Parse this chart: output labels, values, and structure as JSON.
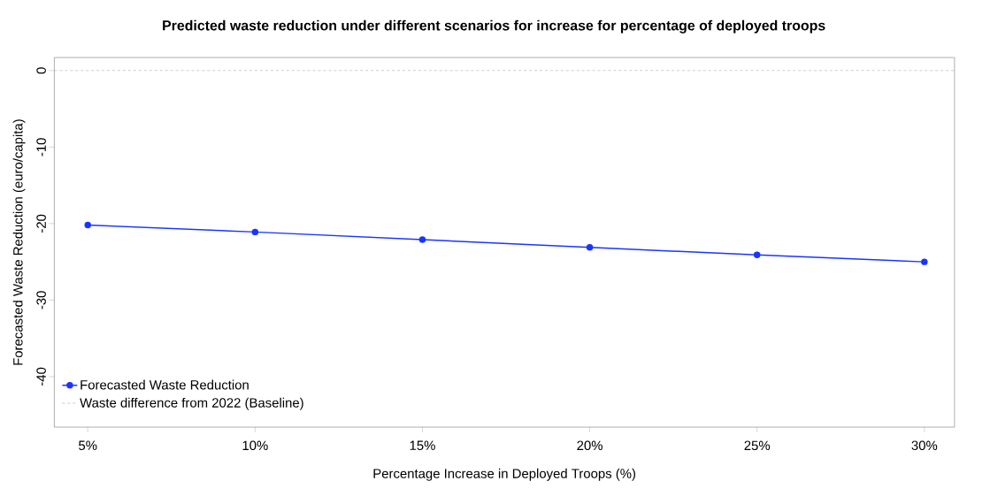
{
  "chart_data": {
    "type": "line",
    "title": "Predicted waste reduction under different scenarios for increase for percentage of deployed troops",
    "xlabel": "Percentage Increase in Deployed Troops (%)",
    "ylabel": "Forecasted Waste Reduction (euro/capita)",
    "x": [
      5,
      10,
      15,
      20,
      25,
      30
    ],
    "series": [
      {
        "name": "Forecasted Waste Reduction",
        "color": "#1a35ff",
        "values": [
          -20.2,
          -21.1,
          -22.1,
          -23.1,
          -24.1,
          -25.0
        ]
      }
    ],
    "marker": "circle",
    "line_style": "solid",
    "xlim": [
      4,
      30.9
    ],
    "ylim": [
      -46.6,
      1.7
    ],
    "xticks": [
      {
        "value": 5,
        "label": "5%"
      },
      {
        "value": 10,
        "label": "10%"
      },
      {
        "value": 15,
        "label": "15%"
      },
      {
        "value": 20,
        "label": "20%"
      },
      {
        "value": 25,
        "label": "25%"
      },
      {
        "value": 30,
        "label": "30%"
      }
    ],
    "yticks": [
      0,
      -10,
      -20,
      -30,
      -40
    ],
    "ref_lines": [
      {
        "axis": "y",
        "value": 0,
        "label": "Waste difference from 2022 (Baseline)",
        "color": "#bebebe",
        "line_style": "dashed"
      }
    ],
    "legend": "bottom left",
    "grid": false
  }
}
